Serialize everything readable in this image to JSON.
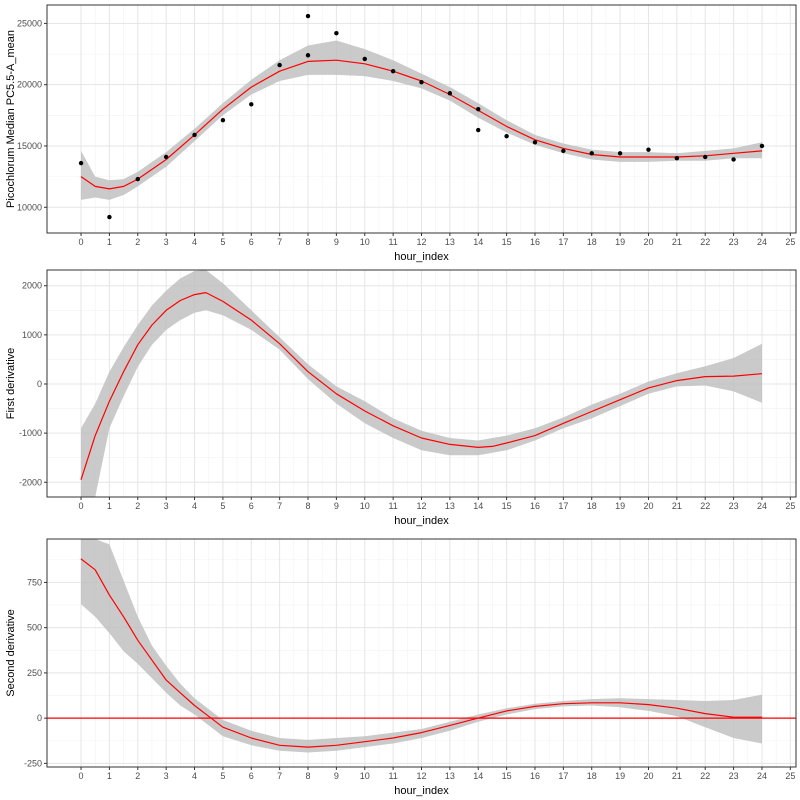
{
  "colors": {
    "fit_line": "#ff0000",
    "confidence_band": "#bdbdbd",
    "points": "#000000",
    "reference_line": "#ff0000",
    "panel_border": "#333333",
    "grid_major": "#e5e5e5",
    "grid_minor": "#f2f2f2"
  },
  "chart_data": [
    {
      "type": "scatter",
      "xlabel": "hour_index",
      "ylabel": "Picochlorum Median PC5.5-A_mean",
      "xlim": [
        -1.2,
        25.2
      ],
      "ylim": [
        7900,
        26500
      ],
      "x_ticks": [
        0,
        1,
        2,
        3,
        4,
        5,
        6,
        7,
        8,
        9,
        10,
        11,
        12,
        13,
        14,
        15,
        16,
        17,
        18,
        19,
        20,
        21,
        22,
        23,
        24,
        25
      ],
      "y_ticks": [
        10000,
        15000,
        20000,
        25000
      ],
      "y_tick_labels": [
        "10000",
        "15000",
        "20000",
        "25000"
      ],
      "grid": true,
      "points": [
        [
          0,
          13600
        ],
        [
          1,
          9200
        ],
        [
          2,
          12300
        ],
        [
          3,
          14100
        ],
        [
          4,
          15900
        ],
        [
          5,
          17100
        ],
        [
          6,
          18400
        ],
        [
          7,
          21600
        ],
        [
          8,
          22400
        ],
        [
          8,
          25600
        ],
        [
          9,
          24200
        ],
        [
          10,
          22100
        ],
        [
          11,
          21100
        ],
        [
          12,
          20200
        ],
        [
          13,
          19300
        ],
        [
          14,
          18000
        ],
        [
          14,
          16300
        ],
        [
          15,
          15800
        ],
        [
          16,
          15300
        ],
        [
          17,
          14600
        ],
        [
          18,
          14400
        ],
        [
          19,
          14400
        ],
        [
          20,
          14700
        ],
        [
          21,
          14000
        ],
        [
          22,
          14100
        ],
        [
          23,
          13900
        ],
        [
          24,
          15000
        ]
      ],
      "fit": [
        [
          0,
          12500
        ],
        [
          0.5,
          11700
        ],
        [
          1,
          11500
        ],
        [
          1.5,
          11700
        ],
        [
          2,
          12300
        ],
        [
          3,
          13900
        ],
        [
          4,
          15900
        ],
        [
          5,
          18000
        ],
        [
          6,
          19800
        ],
        [
          7,
          21100
        ],
        [
          8,
          21900
        ],
        [
          9,
          22000
        ],
        [
          10,
          21700
        ],
        [
          11,
          21100
        ],
        [
          12,
          20300
        ],
        [
          13,
          19200
        ],
        [
          14,
          17900
        ],
        [
          15,
          16600
        ],
        [
          16,
          15500
        ],
        [
          17,
          14800
        ],
        [
          18,
          14300
        ],
        [
          19,
          14100
        ],
        [
          20,
          14100
        ],
        [
          21,
          14100
        ],
        [
          22,
          14200
        ],
        [
          23,
          14400
        ],
        [
          24,
          14600
        ]
      ],
      "band_upper": [
        [
          0,
          14600
        ],
        [
          0.5,
          12500
        ],
        [
          1,
          12200
        ],
        [
          1.5,
          12300
        ],
        [
          2,
          12900
        ],
        [
          3,
          14500
        ],
        [
          4,
          16400
        ],
        [
          5,
          18500
        ],
        [
          6,
          20400
        ],
        [
          7,
          22000
        ],
        [
          8,
          23200
        ],
        [
          9,
          23600
        ],
        [
          10,
          22900
        ],
        [
          11,
          22000
        ],
        [
          12,
          20900
        ],
        [
          13,
          19800
        ],
        [
          14,
          18500
        ],
        [
          15,
          17100
        ],
        [
          16,
          15900
        ],
        [
          17,
          15200
        ],
        [
          18,
          14700
        ],
        [
          19,
          14500
        ],
        [
          20,
          14500
        ],
        [
          21,
          14400
        ],
        [
          22,
          14600
        ],
        [
          23,
          14800
        ],
        [
          24,
          15300
        ]
      ],
      "band_lower": [
        [
          0,
          10600
        ],
        [
          0.5,
          10800
        ],
        [
          1,
          10600
        ],
        [
          1.5,
          11000
        ],
        [
          2,
          11700
        ],
        [
          3,
          13300
        ],
        [
          4,
          15400
        ],
        [
          5,
          17500
        ],
        [
          6,
          19200
        ],
        [
          7,
          20300
        ],
        [
          8,
          20800
        ],
        [
          9,
          20800
        ],
        [
          10,
          20700
        ],
        [
          11,
          20300
        ],
        [
          12,
          19700
        ],
        [
          13,
          18700
        ],
        [
          14,
          17300
        ],
        [
          15,
          16100
        ],
        [
          16,
          15100
        ],
        [
          17,
          14400
        ],
        [
          18,
          13900
        ],
        [
          19,
          13700
        ],
        [
          20,
          13700
        ],
        [
          21,
          13800
        ],
        [
          22,
          13800
        ],
        [
          23,
          14000
        ],
        [
          24,
          14000
        ]
      ]
    },
    {
      "type": "line",
      "xlabel": "hour_index",
      "ylabel": "First derivative",
      "xlim": [
        -1.2,
        25.2
      ],
      "ylim": [
        -2300,
        2320
      ],
      "x_ticks": [
        0,
        1,
        2,
        3,
        4,
        5,
        6,
        7,
        8,
        9,
        10,
        11,
        12,
        13,
        14,
        15,
        16,
        17,
        18,
        19,
        20,
        21,
        22,
        23,
        24,
        25
      ],
      "y_ticks": [
        -2000,
        -1000,
        0,
        1000,
        2000
      ],
      "y_tick_labels": [
        "-2000",
        "-1000",
        "0",
        "1000",
        "2000"
      ],
      "grid": true,
      "fit": [
        [
          0,
          -1950
        ],
        [
          0.5,
          -1050
        ],
        [
          1,
          -350
        ],
        [
          1.5,
          250
        ],
        [
          2,
          800
        ],
        [
          2.5,
          1200
        ],
        [
          3,
          1500
        ],
        [
          3.5,
          1700
        ],
        [
          4,
          1820
        ],
        [
          4.4,
          1860
        ],
        [
          5,
          1680
        ],
        [
          6,
          1300
        ],
        [
          7,
          820
        ],
        [
          8,
          250
        ],
        [
          9,
          -200
        ],
        [
          10,
          -550
        ],
        [
          11,
          -850
        ],
        [
          12,
          -1100
        ],
        [
          13,
          -1230
        ],
        [
          14,
          -1290
        ],
        [
          14.5,
          -1270
        ],
        [
          15,
          -1200
        ],
        [
          16,
          -1050
        ],
        [
          17,
          -800
        ],
        [
          18,
          -560
        ],
        [
          19,
          -320
        ],
        [
          20,
          -80
        ],
        [
          21,
          70
        ],
        [
          22,
          150
        ],
        [
          23,
          160
        ],
        [
          24,
          210
        ]
      ],
      "band_upper": [
        [
          0,
          -900
        ],
        [
          0.5,
          -400
        ],
        [
          1,
          250
        ],
        [
          1.5,
          750
        ],
        [
          2,
          1200
        ],
        [
          2.5,
          1600
        ],
        [
          3,
          1900
        ],
        [
          3.5,
          2150
        ],
        [
          4,
          2300
        ],
        [
          4.4,
          2320
        ],
        [
          5,
          2050
        ],
        [
          6,
          1500
        ],
        [
          7,
          950
        ],
        [
          8,
          400
        ],
        [
          9,
          -50
        ],
        [
          10,
          -350
        ],
        [
          11,
          -700
        ],
        [
          12,
          -950
        ],
        [
          13,
          -1100
        ],
        [
          14,
          -1150
        ],
        [
          14.5,
          -1100
        ],
        [
          15,
          -1050
        ],
        [
          16,
          -900
        ],
        [
          17,
          -680
        ],
        [
          18,
          -420
        ],
        [
          19,
          -200
        ],
        [
          20,
          50
        ],
        [
          21,
          220
        ],
        [
          22,
          360
        ],
        [
          23,
          530
        ],
        [
          24,
          820
        ]
      ],
      "band_lower": [
        [
          0,
          -3000
        ],
        [
          0.5,
          -2300
        ],
        [
          1,
          -900
        ],
        [
          1.5,
          -250
        ],
        [
          2,
          350
        ],
        [
          2.5,
          800
        ],
        [
          3,
          1100
        ],
        [
          3.5,
          1300
        ],
        [
          4,
          1450
        ],
        [
          4.4,
          1500
        ],
        [
          5,
          1400
        ],
        [
          6,
          1100
        ],
        [
          7,
          700
        ],
        [
          8,
          100
        ],
        [
          9,
          -400
        ],
        [
          10,
          -800
        ],
        [
          11,
          -1100
        ],
        [
          12,
          -1350
        ],
        [
          13,
          -1450
        ],
        [
          14,
          -1450
        ],
        [
          14.5,
          -1400
        ],
        [
          15,
          -1350
        ],
        [
          16,
          -1150
        ],
        [
          17,
          -900
        ],
        [
          18,
          -700
        ],
        [
          19,
          -450
        ],
        [
          20,
          -200
        ],
        [
          21,
          -50
        ],
        [
          22,
          -30
        ],
        [
          23,
          -150
        ],
        [
          24,
          -380
        ]
      ]
    },
    {
      "type": "line",
      "xlabel": "hour_index",
      "ylabel": "Second derivative",
      "xlim": [
        -1.2,
        25.2
      ],
      "ylim": [
        -270,
        990
      ],
      "x_ticks": [
        0,
        1,
        2,
        3,
        4,
        5,
        6,
        7,
        8,
        9,
        10,
        11,
        12,
        13,
        14,
        15,
        16,
        17,
        18,
        19,
        20,
        21,
        22,
        23,
        24,
        25
      ],
      "y_ticks": [
        -250,
        0,
        250,
        500,
        750
      ],
      "y_tick_labels": [
        "-250",
        "0",
        "250",
        "500",
        "750"
      ],
      "grid": true,
      "reference_y": 0,
      "fit": [
        [
          0,
          880
        ],
        [
          0.5,
          820
        ],
        [
          1,
          680
        ],
        [
          1.5,
          560
        ],
        [
          2,
          430
        ],
        [
          2.5,
          320
        ],
        [
          3,
          210
        ],
        [
          3.5,
          140
        ],
        [
          4,
          70
        ],
        [
          4.5,
          10
        ],
        [
          5,
          -50
        ],
        [
          6,
          -110
        ],
        [
          7,
          -150
        ],
        [
          8,
          -160
        ],
        [
          9,
          -150
        ],
        [
          10,
          -130
        ],
        [
          11,
          -110
        ],
        [
          12,
          -80
        ],
        [
          13,
          -40
        ],
        [
          14,
          0
        ],
        [
          15,
          40
        ],
        [
          16,
          65
        ],
        [
          17,
          80
        ],
        [
          18,
          85
        ],
        [
          19,
          85
        ],
        [
          20,
          75
        ],
        [
          21,
          55
        ],
        [
          22,
          25
        ],
        [
          23,
          5
        ],
        [
          24,
          5
        ]
      ],
      "band_upper": [
        [
          0,
          990
        ],
        [
          0.5,
          990
        ],
        [
          1,
          960
        ],
        [
          1.5,
          760
        ],
        [
          2,
          560
        ],
        [
          2.5,
          400
        ],
        [
          3,
          290
        ],
        [
          3.5,
          190
        ],
        [
          4,
          110
        ],
        [
          4.5,
          50
        ],
        [
          5,
          -10
        ],
        [
          6,
          -70
        ],
        [
          7,
          -110
        ],
        [
          8,
          -120
        ],
        [
          9,
          -110
        ],
        [
          10,
          -100
        ],
        [
          11,
          -80
        ],
        [
          12,
          -60
        ],
        [
          13,
          -20
        ],
        [
          14,
          20
        ],
        [
          15,
          55
        ],
        [
          16,
          80
        ],
        [
          17,
          95
        ],
        [
          18,
          105
        ],
        [
          19,
          110
        ],
        [
          20,
          105
        ],
        [
          21,
          100
        ],
        [
          22,
          95
        ],
        [
          23,
          100
        ],
        [
          24,
          130
        ]
      ],
      "band_lower": [
        [
          0,
          630
        ],
        [
          0.5,
          560
        ],
        [
          1,
          470
        ],
        [
          1.5,
          370
        ],
        [
          2,
          300
        ],
        [
          2.5,
          220
        ],
        [
          3,
          140
        ],
        [
          3.5,
          70
        ],
        [
          4,
          20
        ],
        [
          4.5,
          -40
        ],
        [
          5,
          -100
        ],
        [
          6,
          -150
        ],
        [
          7,
          -180
        ],
        [
          8,
          -190
        ],
        [
          9,
          -180
        ],
        [
          10,
          -160
        ],
        [
          11,
          -140
        ],
        [
          12,
          -110
        ],
        [
          13,
          -70
        ],
        [
          14,
          -20
        ],
        [
          15,
          20
        ],
        [
          16,
          50
        ],
        [
          17,
          65
        ],
        [
          18,
          70
        ],
        [
          19,
          60
        ],
        [
          20,
          40
        ],
        [
          21,
          10
        ],
        [
          22,
          -50
        ],
        [
          23,
          -110
        ],
        [
          24,
          -140
        ]
      ]
    }
  ]
}
